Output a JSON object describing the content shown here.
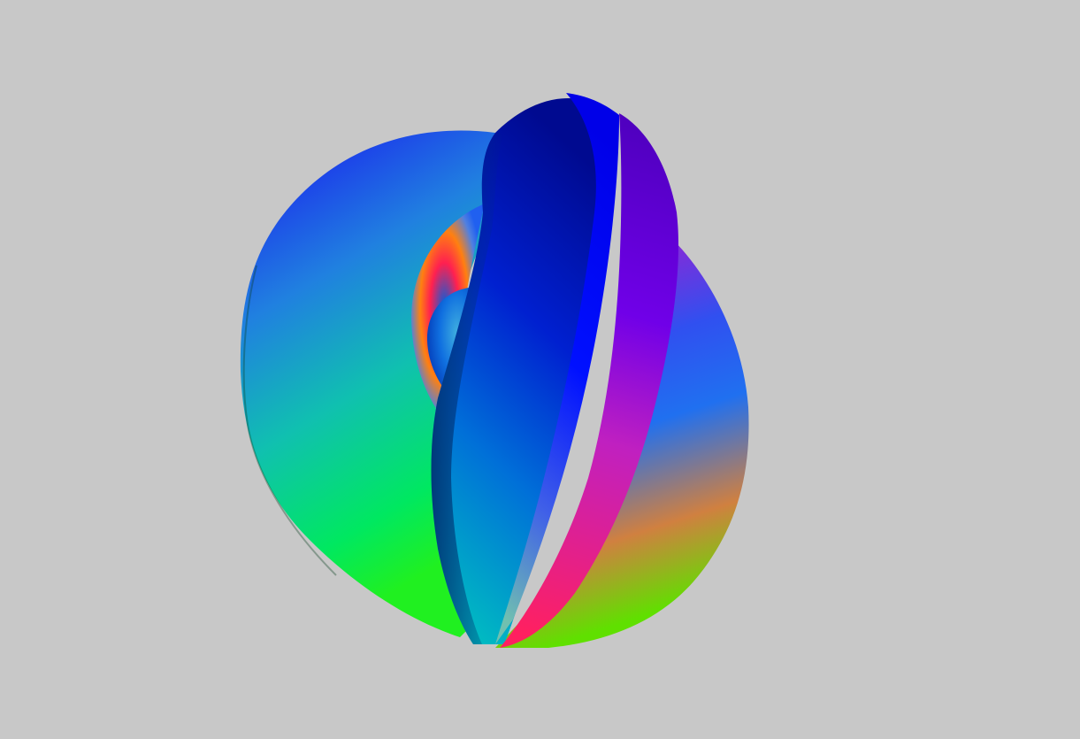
{
  "scene": {
    "background_color": "#c8c8c8",
    "object": "knotted-torus",
    "shading": "normal-map-rainbow",
    "colors": {
      "blue": "#0000ff",
      "deep_blue": "#0010a0",
      "cyan": "#00b4c8",
      "green": "#00f040",
      "lime": "#50f000",
      "magenta": "#c000c0",
      "red": "#ff2060",
      "orange": "#e08030",
      "purple": "#7000e0"
    }
  }
}
